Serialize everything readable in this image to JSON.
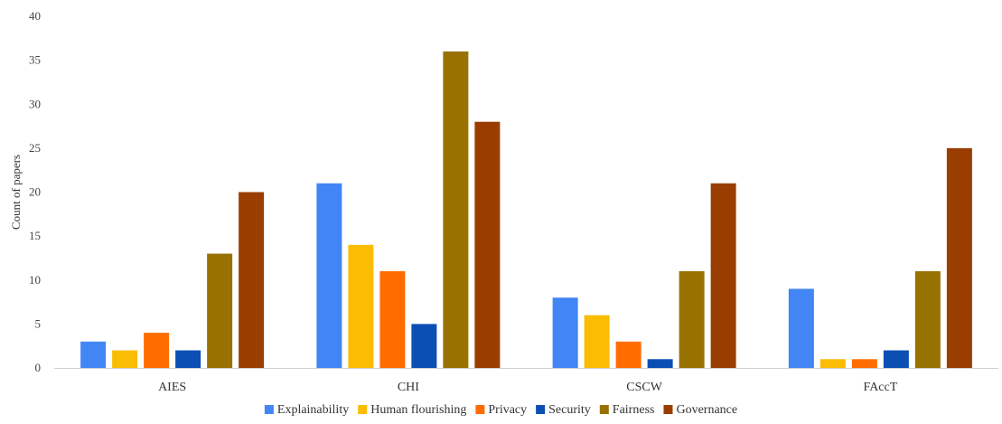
{
  "chart_data": {
    "type": "bar",
    "categories": [
      "AIES",
      "CHI",
      "CSCW",
      "FAccT"
    ],
    "series": [
      {
        "name": "Explainability",
        "color": "#4285f4",
        "values": [
          3,
          21,
          8,
          9
        ]
      },
      {
        "name": "Human flourishing",
        "color": "#fbbc04",
        "values": [
          2,
          14,
          6,
          1
        ]
      },
      {
        "name": "Privacy",
        "color": "#ff6d01",
        "values": [
          4,
          11,
          3,
          1
        ]
      },
      {
        "name": "Security",
        "color": "#0b4fb4",
        "values": [
          2,
          5,
          1,
          2
        ]
      },
      {
        "name": "Fairness",
        "color": "#987200",
        "values": [
          13,
          36,
          11,
          11
        ]
      },
      {
        "name": "Governance",
        "color": "#993e00",
        "values": [
          20,
          28,
          21,
          25
        ]
      }
    ],
    "ylabel": "Count of papers",
    "ylim": [
      0,
      40
    ],
    "yticks": [
      0,
      5,
      10,
      15,
      20,
      25,
      30,
      35,
      40
    ],
    "grid": false,
    "legend": "bottom"
  }
}
